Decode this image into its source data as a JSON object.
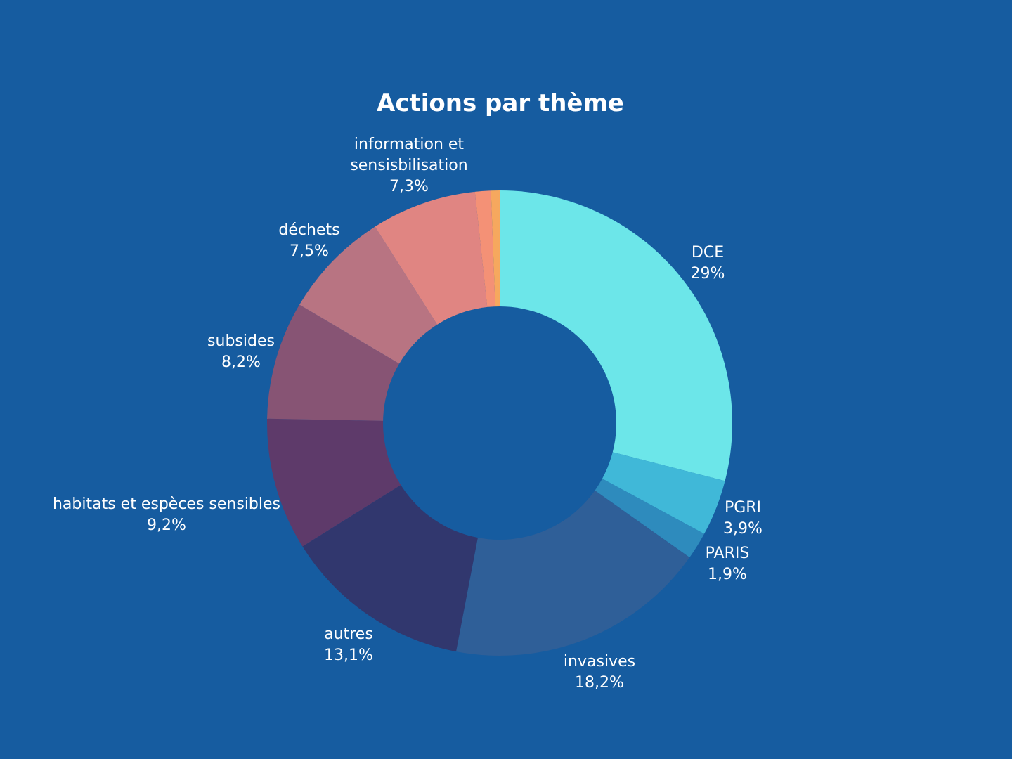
{
  "chart_data": {
    "type": "pie",
    "variant": "donut",
    "title": "Actions par thème",
    "start_angle_deg": 0,
    "direction": "clockwise",
    "slices": [
      {
        "name": "DCE",
        "label_lines": [
          "DCE"
        ],
        "value": 29,
        "value_label": "29%",
        "color": "#6ce6e9"
      },
      {
        "name": "PGRI",
        "label_lines": [
          "PGRI"
        ],
        "value": 3.9,
        "value_label": "3,9%",
        "color": "#40b8d8"
      },
      {
        "name": "PARIS",
        "label_lines": [
          "PARIS"
        ],
        "value": 1.9,
        "value_label": "1,9%",
        "color": "#2e8bbd"
      },
      {
        "name": "invasives",
        "label_lines": [
          "invasives"
        ],
        "value": 18.2,
        "value_label": "18,2%",
        "color": "#2f5f98"
      },
      {
        "name": "autres",
        "label_lines": [
          "autres"
        ],
        "value": 13.1,
        "value_label": "13,1%",
        "color": "#31376e"
      },
      {
        "name": "habitats et espèces sensibles",
        "label_lines": [
          "habitats et espèces sensibles"
        ],
        "value": 9.2,
        "value_label": "9,2%",
        "color": "#5e3a6a"
      },
      {
        "name": "subsides",
        "label_lines": [
          "subsides"
        ],
        "value": 8.2,
        "value_label": "8,2%",
        "color": "#875474"
      },
      {
        "name": "déchets",
        "label_lines": [
          "déchets"
        ],
        "value": 7.5,
        "value_label": "7,5%",
        "color": "#b87482"
      },
      {
        "name": "information et sensisbilisation",
        "label_lines": [
          "information et",
          "sensisbilisation"
        ],
        "value": 7.3,
        "value_label": "7,3%",
        "color": "#e08582"
      },
      {
        "name": "",
        "label_lines": [],
        "value": 1.1,
        "value_label": "",
        "color": "#f49176"
      },
      {
        "name": "",
        "label_lines": [],
        "value": 0.6,
        "value_label": "",
        "color": "#f6a85e"
      }
    ]
  }
}
